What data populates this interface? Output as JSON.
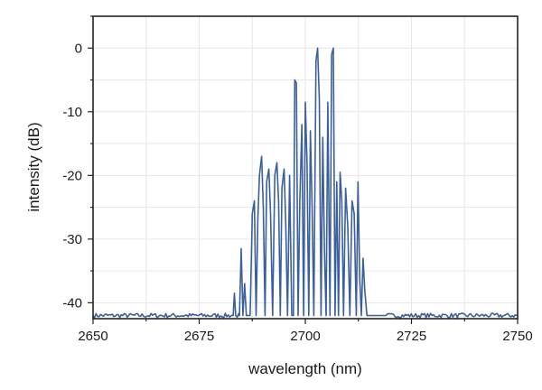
{
  "chart_data": {
    "type": "line",
    "title": "",
    "xlabel": "wavelength (nm)",
    "ylabel": "intensity (dB)",
    "xlim": [
      2650,
      2750
    ],
    "ylim": [
      -42.5,
      5
    ],
    "xticks": [
      2650,
      2675,
      2700,
      2725,
      2750
    ],
    "xtick_labels": [
      "2650",
      "2675",
      "2700",
      "2725",
      "2750"
    ],
    "yticks": [
      0,
      -10,
      -20,
      -30,
      -40
    ],
    "ytick_labels": [
      "0",
      "-10",
      "-20",
      "-30",
      "-40"
    ],
    "grid": true,
    "color": "#3a5f9c",
    "series": [
      {
        "noise_floor": -42,
        "x": [
          2650,
          2683.0,
          2683.3,
          2683.6,
          2684.5,
          2684.9,
          2685.3,
          2685.7,
          2686.1,
          2686.6,
          2687.0,
          2687.5,
          2688.0,
          2688.4,
          2688.8,
          2689.2,
          2689.7,
          2690.1,
          2690.5,
          2690.9,
          2691.4,
          2691.8,
          2692.3,
          2692.8,
          2693.3,
          2693.7,
          2694.1,
          2694.5,
          2695.0,
          2695.4,
          2695.8,
          2696.3,
          2696.8,
          2697.2,
          2697.5,
          2697.9,
          2698.3,
          2698.7,
          2699.2,
          2699.6,
          2700.0,
          2700.4,
          2700.8,
          2701.2,
          2701.6,
          2702.0,
          2702.5,
          2702.9,
          2703.3,
          2703.7,
          2704.1,
          2704.5,
          2704.9,
          2705.3,
          2705.8,
          2706.2,
          2706.6,
          2707.0,
          2707.4,
          2707.8,
          2708.2,
          2708.6,
          2709.0,
          2709.5,
          2710.0,
          2710.5,
          2711.0,
          2711.5,
          2712.0,
          2712.4,
          2712.8,
          2713.2,
          2713.6,
          2714.0,
          2714.5,
          2715.0,
          2715.4,
          2715.8,
          2716.2,
          2716.7,
          2717.2,
          2717.6,
          2718.0,
          2718.4,
          2719.0,
          2750
        ],
        "y": [
          -42,
          -42,
          -38.5,
          -42,
          -42,
          -31.5,
          -42,
          -37,
          -42,
          -42,
          -42,
          -26,
          -24,
          -42,
          -27,
          -20,
          -17,
          -25,
          -42,
          -21,
          -19,
          -26,
          -42,
          -20,
          -18,
          -24,
          -42,
          -22,
          -19,
          -28,
          -42,
          -20,
          -42,
          -42,
          -5,
          -5.5,
          -42,
          -24,
          -12,
          -42,
          -8.5,
          -18,
          -42,
          -13,
          -25,
          -42,
          -2,
          0,
          -8,
          -42,
          -14,
          -32,
          -42,
          -8.5,
          -42,
          -1,
          0,
          -42,
          -21,
          -42,
          -19.5,
          -24,
          -42,
          -22,
          -28,
          -42,
          -24,
          -26,
          -42,
          -21,
          -36,
          -42,
          -33,
          -38,
          -42,
          -42,
          -42,
          -42,
          -42,
          -42,
          -42,
          -42,
          -42,
          -42,
          -42,
          -42
        ]
      }
    ]
  }
}
